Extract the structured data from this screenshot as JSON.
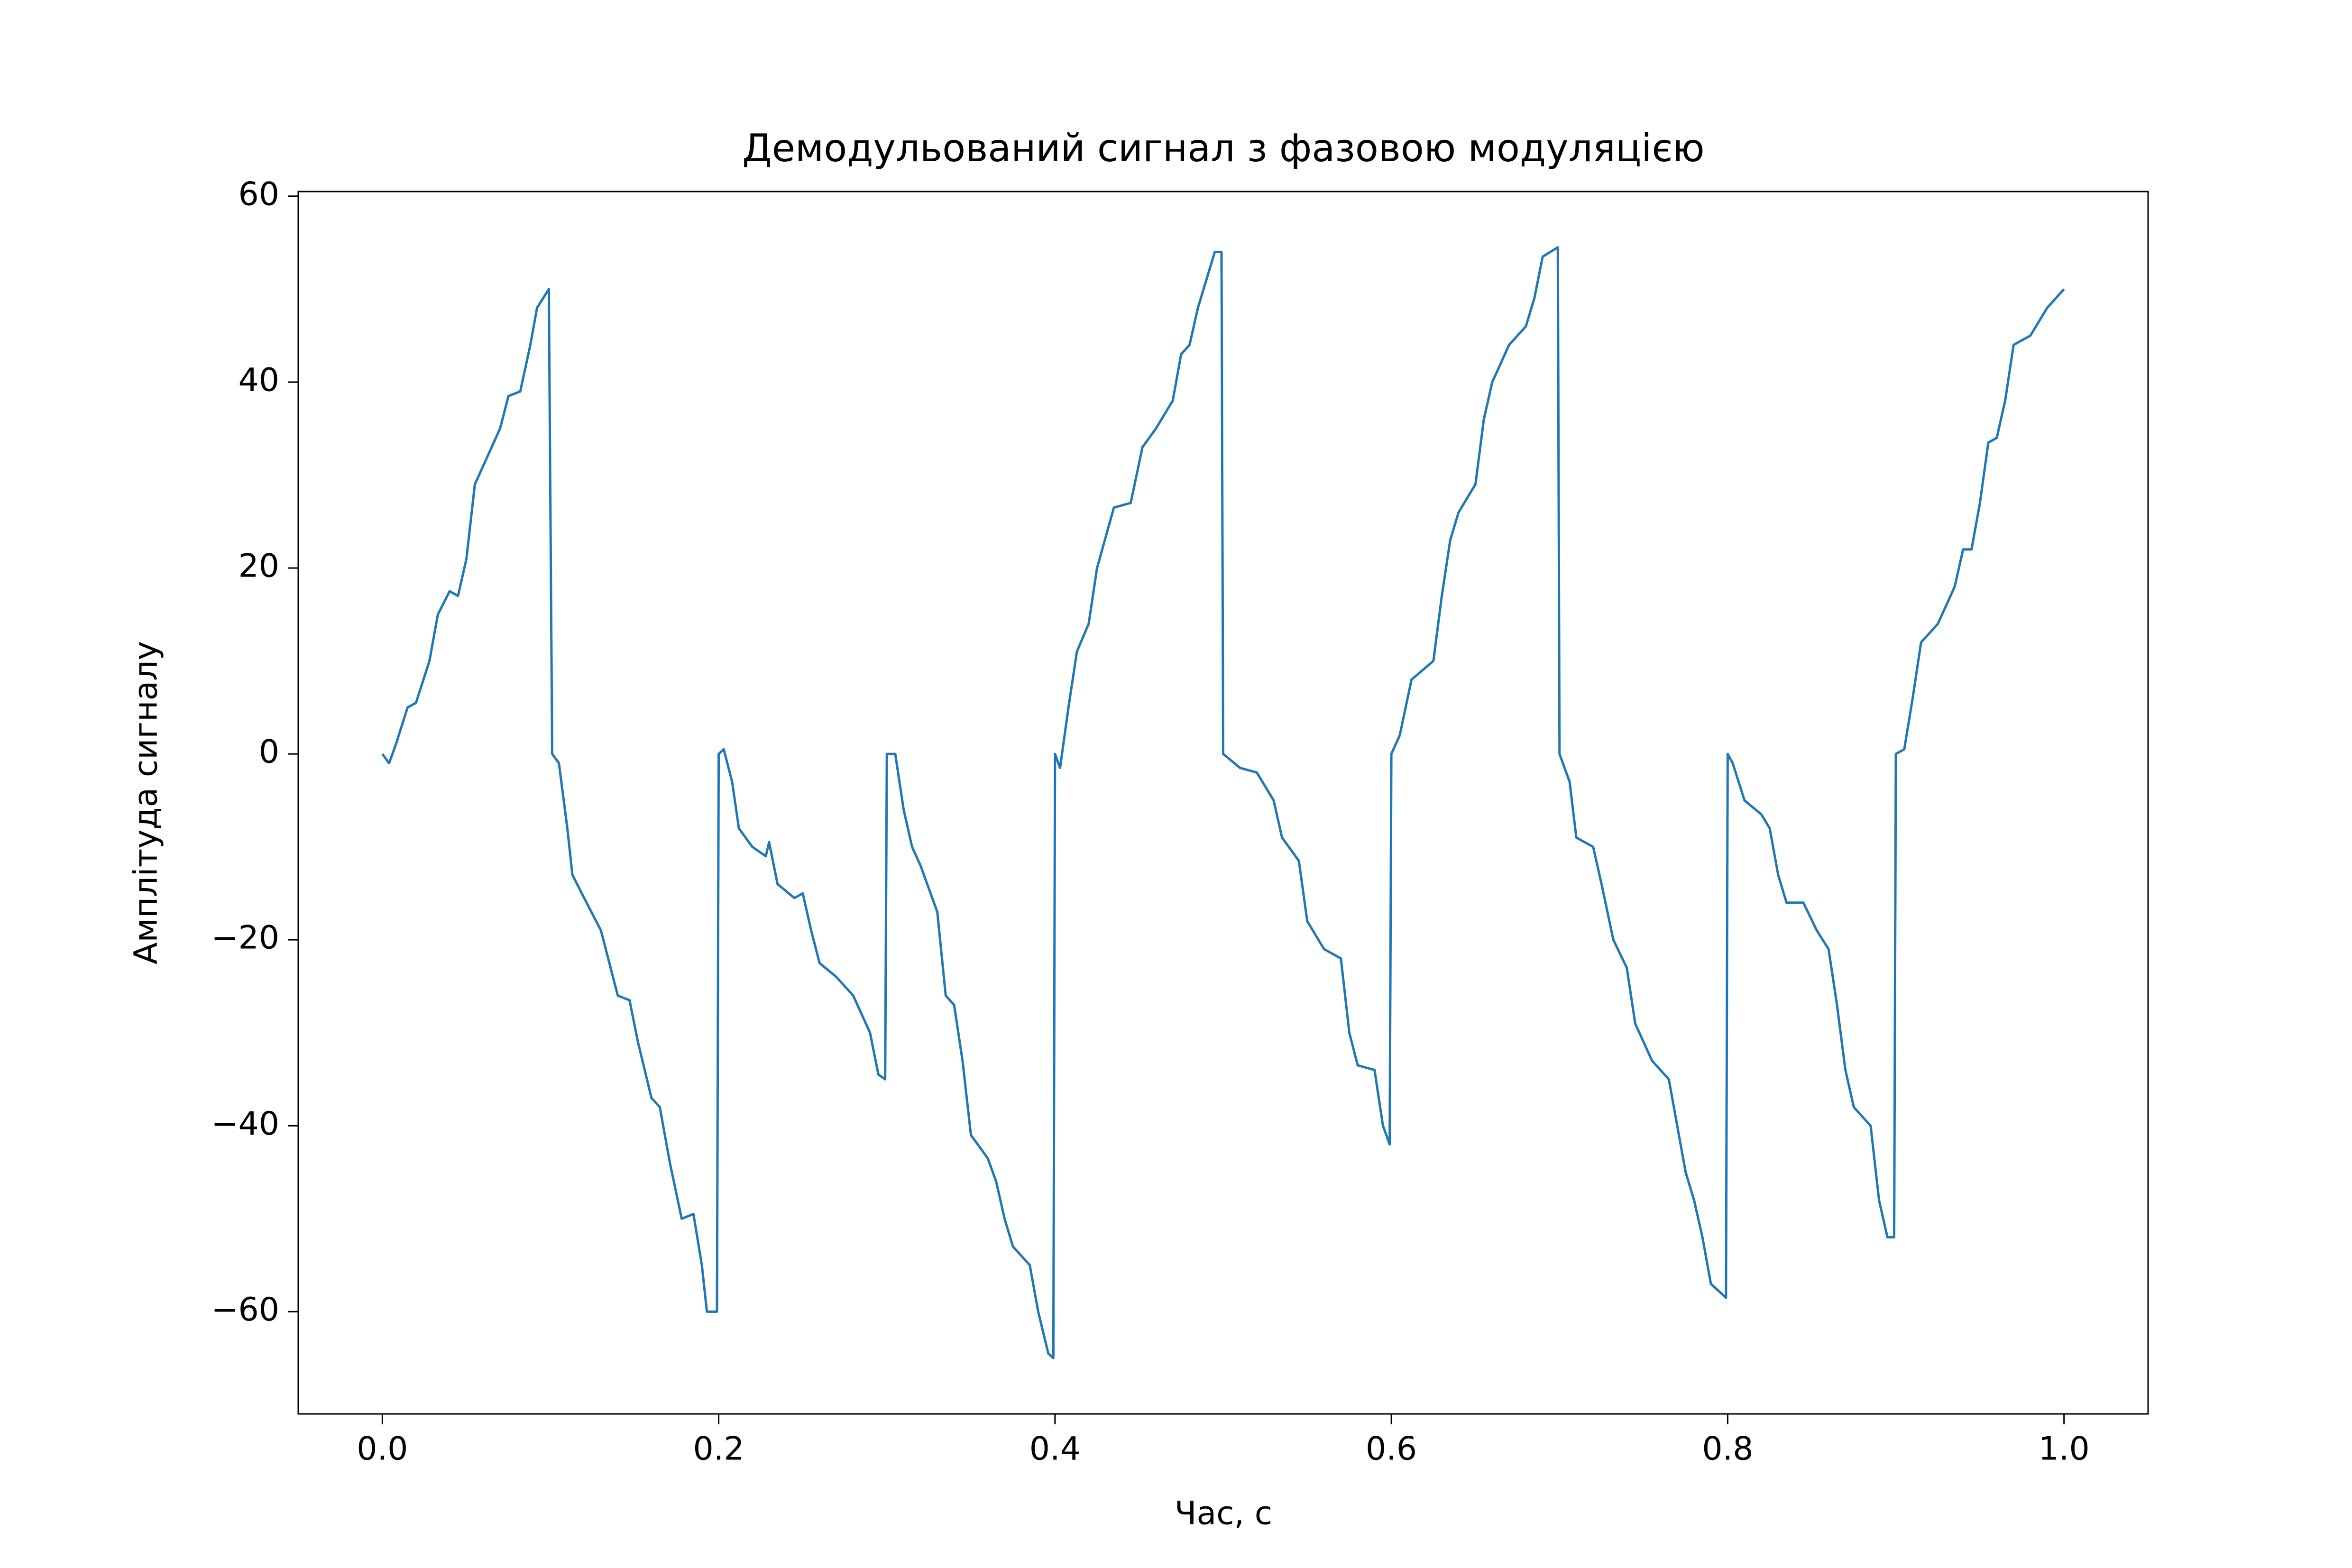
{
  "chart_data": {
    "type": "line",
    "title": "Демодульований сигнал з фазовою модуляцією",
    "xlabel": "Час, с",
    "ylabel": "Амплітуда сигналу",
    "x": [
      0,
      0.004,
      0.008,
      0.015,
      0.02,
      0.028,
      0.033,
      0.04,
      0.045,
      0.05,
      0.055,
      0.06,
      0.065,
      0.07,
      0.075,
      0.082,
      0.088,
      0.092,
      0.099,
      0.101,
      0.105,
      0.11,
      0.113,
      0.12,
      0.13,
      0.14,
      0.147,
      0.152,
      0.16,
      0.165,
      0.171,
      0.178,
      0.185,
      0.19,
      0.193,
      0.199,
      0.2,
      0.203,
      0.208,
      0.212,
      0.22,
      0.228,
      0.23,
      0.235,
      0.245,
      0.25,
      0.255,
      0.26,
      0.27,
      0.28,
      0.29,
      0.295,
      0.299,
      0.3,
      0.305,
      0.31,
      0.315,
      0.32,
      0.33,
      0.335,
      0.34,
      0.345,
      0.35,
      0.36,
      0.365,
      0.37,
      0.375,
      0.385,
      0.39,
      0.396,
      0.399,
      0.4,
      0.403,
      0.408,
      0.413,
      0.42,
      0.425,
      0.435,
      0.445,
      0.452,
      0.46,
      0.47,
      0.475,
      0.48,
      0.485,
      0.49,
      0.495,
      0.499,
      0.5,
      0.51,
      0.52,
      0.53,
      0.535,
      0.545,
      0.55,
      0.56,
      0.57,
      0.575,
      0.58,
      0.59,
      0.595,
      0.599,
      0.6,
      0.605,
      0.612,
      0.625,
      0.63,
      0.635,
      0.64,
      0.65,
      0.655,
      0.66,
      0.67,
      0.68,
      0.685,
      0.69,
      0.699,
      0.7,
      0.706,
      0.71,
      0.72,
      0.725,
      0.732,
      0.74,
      0.745,
      0.755,
      0.765,
      0.77,
      0.775,
      0.78,
      0.785,
      0.79,
      0.799,
      0.8,
      0.803,
      0.81,
      0.82,
      0.825,
      0.83,
      0.835,
      0.845,
      0.853,
      0.86,
      0.865,
      0.87,
      0.875,
      0.885,
      0.89,
      0.895,
      0.899,
      0.9,
      0.905,
      0.91,
      0.915,
      0.925,
      0.935,
      0.94,
      0.945,
      0.95,
      0.955,
      0.96,
      0.965,
      0.97,
      0.98,
      0.99,
      1.0
    ],
    "series": [
      {
        "color": "#1f77b4",
        "values": [
          0,
          -1,
          1,
          5,
          5.5,
          10,
          15,
          17.5,
          17,
          21,
          29,
          31,
          33,
          35,
          38.5,
          39,
          44,
          48,
          50,
          0,
          -1,
          -8,
          -13,
          -15.5,
          -19,
          -26,
          -26.5,
          -31,
          -37,
          -38,
          -44,
          -50,
          -49.5,
          -55,
          -60,
          -60,
          0,
          0.5,
          -3,
          -8,
          -10,
          -11,
          -9.5,
          -14,
          -15.5,
          -15,
          -19,
          -22.5,
          -24,
          -26,
          -30,
          -34.5,
          -35,
          0,
          0,
          -6,
          -10,
          -12,
          -17,
          -26,
          -27,
          -33,
          -41,
          -43.5,
          -46,
          -50,
          -53,
          -55,
          -60,
          -64.5,
          -65,
          0,
          -1.5,
          5,
          11,
          14,
          20,
          26.5,
          27,
          33,
          35,
          38,
          43,
          44,
          48,
          51,
          54,
          54,
          0,
          -1.5,
          -2,
          -5,
          -9,
          -11.5,
          -18,
          -21,
          -22,
          -30,
          -33.5,
          -34,
          -40,
          -42,
          0,
          2,
          8,
          10,
          17,
          23,
          26,
          29,
          36,
          40,
          44,
          46,
          49,
          53.5,
          54.5,
          0,
          -3,
          -9,
          -10,
          -14,
          -20,
          -23,
          -29,
          -33,
          -35,
          -40,
          -45,
          -48,
          -52,
          -57,
          -58.5,
          0,
          -1,
          -5,
          -6.5,
          -8,
          -13,
          -16,
          -16,
          -19,
          -21,
          -27,
          -34,
          -38,
          -40,
          -48,
          -52,
          -52,
          0,
          0.5,
          6,
          12,
          14,
          18,
          22,
          22,
          27,
          33.5,
          34,
          38,
          44,
          45,
          48,
          50
        ]
      }
    ],
    "xlim": [
      -0.05,
      1.05
    ],
    "ylim": [
      -71,
      60.5
    ],
    "xticks": [
      {
        "value": 0,
        "label": "0.0"
      },
      0.2,
      0.4,
      0.6,
      0.8,
      {
        "value": 1,
        "label": "1.0"
      }
    ],
    "yticks": [
      {
        "value": -60,
        "label": "−60"
      },
      {
        "value": -40,
        "label": "−40"
      },
      {
        "value": -20,
        "label": "−20"
      },
      0,
      20,
      40,
      60
    ],
    "grid": false
  }
}
